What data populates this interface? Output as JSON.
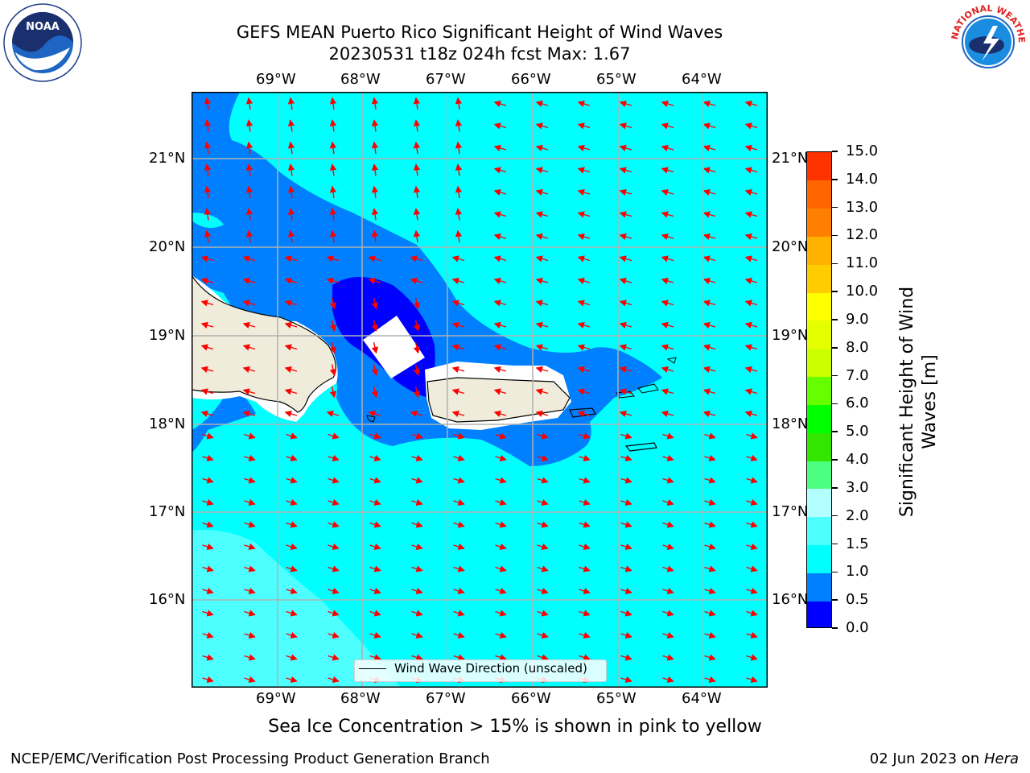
{
  "title": {
    "line1": "GEFS MEAN Puerto Rico Significant Height of Wind Waves",
    "line2": "20230531 t18z 024h fcst   Max: 1.67"
  },
  "logos": {
    "left": {
      "name": "noaa-logo",
      "text": "NOAA"
    },
    "right": {
      "name": "nws-logo",
      "text": "NATIONAL WEATHER SERVICE"
    }
  },
  "map": {
    "lon_labels": [
      "69°W",
      "68°W",
      "67°W",
      "66°W",
      "65°W",
      "64°W"
    ],
    "lat_labels": [
      "21°N",
      "20°N",
      "19°N",
      "18°N",
      "17°N",
      "16°N"
    ],
    "legend_label": "Wind Wave Direction (unscaled)",
    "colors": {
      "ocean_main": "#00ffff",
      "band_05_1": "#0080ff",
      "band_0_05": "#0000ff",
      "band_15_2": "#4dffff",
      "land": "#efecdc",
      "arrow": "#ff0000",
      "grid": "#b0b0b0"
    }
  },
  "colorbar": {
    "ticks": [
      "0.0",
      "0.5",
      "1.0",
      "1.5",
      "2.0",
      "3.0",
      "4.0",
      "5.0",
      "6.0",
      "7.0",
      "8.0",
      "9.0",
      "10.0",
      "11.0",
      "12.0",
      "13.0",
      "14.0",
      "15.0"
    ],
    "colors": [
      "#0000ff",
      "#0080ff",
      "#00ffff",
      "#4dffff",
      "#b3ffff",
      "#4dff80",
      "#33e600",
      "#00ff00",
      "#66ff00",
      "#ccff00",
      "#e6ff00",
      "#ffff00",
      "#ffcc00",
      "#ffb300",
      "#ff8000",
      "#ff6600",
      "#ff3300"
    ],
    "label_line1": "Significant Height of Wind",
    "label_line2": "Waves [m]"
  },
  "subtitle": "Sea Ice Concentration > 15% is shown in pink to yellow",
  "footer": {
    "left": "NCEP/EMC/Verification Post Processing Product Generation Branch",
    "right_date": "02 Jun 2023 on ",
    "right_host": "Hera"
  }
}
